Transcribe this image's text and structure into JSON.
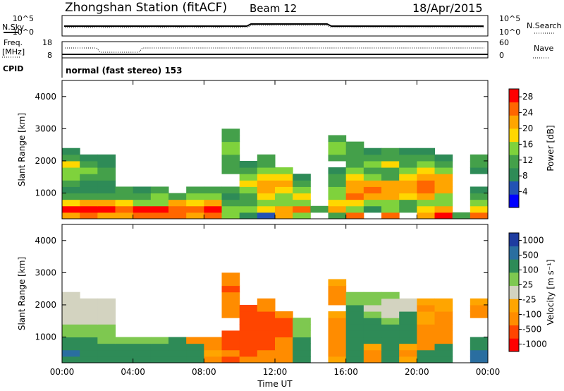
{
  "header": {
    "station": "Zhongshan Station (fitACF)",
    "beam": "Beam 12",
    "date": "18/Apr/2015"
  },
  "strips": {
    "nsky_label": "N.Sky",
    "nsearch_label": "N.Search",
    "noise_ticks": [
      "10^5",
      "10^0"
    ],
    "freq_label_1": "Freq.",
    "freq_label_2": "[MHz]",
    "freq_ticks": [
      "18",
      "8"
    ],
    "nave_label": "Nave",
    "nave_ticks": [
      "60",
      "0"
    ],
    "cpid_label": "CPID",
    "cpid_text": "normal (fast stereo) 153"
  },
  "colors": {
    "power": [
      "#0000ff",
      "#2352b4",
      "#2e8b57",
      "#44a04a",
      "#7fd23c",
      "#ffd700",
      "#ffa500",
      "#ff6600",
      "#ff0000"
    ],
    "velocity": [
      "#ff0000",
      "#ff4500",
      "#ff8c00",
      "#ffa500",
      "#d3d3c0",
      "#7ec850",
      "#2e8b57",
      "#2a6ea0",
      "#1e3ca0"
    ]
  },
  "chart_data": [
    {
      "type": "heatmap",
      "name": "power",
      "ylabel": "Slant Range [km]",
      "yticks": [
        1000,
        2000,
        3000,
        4000
      ],
      "ylim": [
        200,
        4500
      ],
      "xlim": [
        0,
        24
      ],
      "colorbar_label": "Power [dB]",
      "colorbar_ticks": [
        4,
        8,
        12,
        16,
        20,
        24,
        28
      ],
      "colorbar_range": [
        0,
        30
      ],
      "x_hours": [
        0,
        1,
        2,
        3,
        4,
        5,
        6,
        7,
        8,
        9,
        10,
        11,
        12,
        13,
        14,
        15,
        16,
        17,
        18,
        19,
        20,
        21,
        22,
        23
      ],
      "ranges_km": [
        300,
        500,
        700,
        900,
        1100,
        1300,
        1500,
        1700,
        1900,
        2100,
        2300,
        2500,
        2700,
        2900
      ],
      "values_db": [
        [
          22,
          26,
          22,
          22,
          26,
          24,
          24,
          22,
          26,
          14,
          8,
          4,
          22,
          14,
          0,
          12,
          24,
          0,
          24,
          0,
          22,
          28,
          12,
          26
        ],
        [
          28,
          28,
          28,
          24,
          28,
          28,
          26,
          26,
          28,
          16,
          16,
          18,
          22,
          26,
          12,
          20,
          16,
          8,
          14,
          10,
          18,
          22,
          0,
          18
        ],
        [
          18,
          20,
          20,
          18,
          16,
          16,
          20,
          18,
          20,
          10,
          10,
          14,
          14,
          16,
          0,
          18,
          18,
          14,
          16,
          12,
          16,
          14,
          0,
          14
        ],
        [
          12,
          10,
          10,
          10,
          10,
          14,
          10,
          14,
          14,
          8,
          12,
          18,
          16,
          18,
          0,
          16,
          24,
          20,
          22,
          18,
          20,
          16,
          0,
          12
        ],
        [
          8,
          8,
          8,
          10,
          8,
          10,
          0,
          12,
          10,
          10,
          16,
          20,
          18,
          14,
          0,
          14,
          20,
          24,
          20,
          22,
          24,
          20,
          0,
          8
        ],
        [
          10,
          8,
          8,
          0,
          0,
          0,
          0,
          0,
          0,
          0,
          18,
          22,
          20,
          10,
          0,
          12,
          22,
          22,
          20,
          22,
          24,
          22,
          0,
          0
        ],
        [
          14,
          12,
          10,
          0,
          0,
          0,
          0,
          0,
          0,
          0,
          14,
          18,
          18,
          8,
          0,
          10,
          18,
          14,
          10,
          18,
          22,
          20,
          0,
          0
        ],
        [
          16,
          14,
          12,
          0,
          0,
          0,
          0,
          0,
          0,
          12,
          10,
          16,
          14,
          0,
          0,
          8,
          14,
          12,
          12,
          14,
          18,
          16,
          0,
          8
        ],
        [
          18,
          10,
          8,
          0,
          0,
          0,
          0,
          0,
          0,
          10,
          8,
          12,
          0,
          0,
          0,
          0,
          10,
          16,
          18,
          10,
          16,
          12,
          0,
          12
        ],
        [
          10,
          8,
          8,
          0,
          0,
          0,
          0,
          0,
          0,
          12,
          0,
          10,
          0,
          0,
          0,
          12,
          10,
          10,
          12,
          10,
          12,
          8,
          0,
          10
        ],
        [
          8,
          0,
          0,
          0,
          0,
          0,
          0,
          0,
          0,
          16,
          0,
          0,
          0,
          0,
          0,
          14,
          12,
          8,
          10,
          8,
          8,
          0,
          0,
          0
        ],
        [
          0,
          0,
          0,
          0,
          0,
          0,
          0,
          0,
          0,
          14,
          0,
          0,
          0,
          0,
          0,
          14,
          10,
          0,
          0,
          0,
          0,
          0,
          0,
          0
        ],
        [
          0,
          0,
          0,
          0,
          0,
          0,
          0,
          0,
          0,
          12,
          0,
          0,
          0,
          0,
          0,
          12,
          0,
          0,
          0,
          0,
          0,
          0,
          0,
          0
        ],
        [
          0,
          0,
          0,
          0,
          0,
          0,
          0,
          0,
          0,
          10,
          0,
          0,
          0,
          0,
          0,
          0,
          0,
          0,
          0,
          0,
          0,
          0,
          0,
          0
        ]
      ]
    },
    {
      "type": "heatmap",
      "name": "velocity",
      "ylabel": "Slant Range [km]",
      "yticks": [
        1000,
        2000,
        3000,
        4000
      ],
      "ylim": [
        200,
        4500
      ],
      "xlim": [
        0,
        24
      ],
      "xticks": [
        "00:00",
        "04:00",
        "08:00",
        "12:00",
        "16:00",
        "20:00",
        "00:00"
      ],
      "xlabel": "Time UT",
      "colorbar_label": "Velocity [m s⁻¹]",
      "colorbar_ticks": [
        "1000",
        "500",
        "100",
        "25",
        "-25",
        "-100",
        "-500",
        "-1000"
      ],
      "x_hours": [
        0,
        1,
        2,
        3,
        4,
        5,
        6,
        7,
        8,
        9,
        10,
        11,
        12,
        13,
        14,
        15,
        16,
        17,
        18,
        19,
        20,
        21,
        22,
        23
      ],
      "ranges_km": [
        300,
        500,
        700,
        900,
        1100,
        1300,
        1500,
        1700,
        1900,
        2100,
        2300,
        2500,
        2700,
        2900
      ],
      "values_ms": [
        [
          300,
          200,
          200,
          100,
          100,
          100,
          200,
          300,
          -200,
          -600,
          -400,
          -300,
          -200,
          100,
          0,
          -100,
          100,
          -500,
          100,
          -100,
          200,
          200,
          0,
          600
        ],
        [
          500,
          400,
          300,
          200,
          200,
          200,
          300,
          200,
          -100,
          -500,
          -600,
          -500,
          -300,
          100,
          0,
          -200,
          100,
          -300,
          100,
          -200,
          100,
          300,
          0,
          800
        ],
        [
          400,
          300,
          200,
          100,
          100,
          100,
          100,
          100,
          -300,
          -700,
          -700,
          -600,
          -400,
          150,
          0,
          -300,
          200,
          -100,
          150,
          -100,
          -200,
          400,
          0,
          300
        ],
        [
          300,
          200,
          50,
          60,
          50,
          80,
          150,
          -200,
          -500,
          -800,
          -800,
          -700,
          -500,
          200,
          0,
          -400,
          200,
          150,
          200,
          150,
          -200,
          -300,
          0,
          200
        ],
        [
          60,
          50,
          40,
          0,
          0,
          0,
          0,
          0,
          0,
          -600,
          -700,
          -800,
          -600,
          80,
          0,
          -300,
          150,
          200,
          150,
          100,
          -300,
          -400,
          0,
          0
        ],
        [
          70,
          60,
          50,
          0,
          0,
          0,
          0,
          0,
          0,
          0,
          -900,
          -800,
          -700,
          80,
          0,
          -200,
          150,
          100,
          150,
          100,
          -200,
          -300,
          0,
          0
        ],
        [
          20,
          10,
          20,
          0,
          0,
          0,
          0,
          0,
          0,
          0,
          -800,
          -700,
          -700,
          60,
          0,
          -150,
          120,
          100,
          80,
          150,
          -100,
          -200,
          0,
          0
        ],
        [
          15,
          20,
          15,
          0,
          0,
          0,
          0,
          0,
          0,
          -300,
          -700,
          -600,
          -500,
          0,
          0,
          -100,
          100,
          60,
          20,
          100,
          -100,
          -200,
          0,
          -300
        ],
        [
          20,
          10,
          10,
          0,
          0,
          0,
          0,
          0,
          0,
          -200,
          -600,
          -500,
          0,
          0,
          0,
          0,
          100,
          20,
          10,
          20,
          -150,
          -100,
          0,
          -200
        ],
        [
          10,
          10,
          15,
          0,
          0,
          0,
          0,
          0,
          0,
          -400,
          0,
          -300,
          0,
          0,
          0,
          -200,
          80,
          30,
          10,
          20,
          -100,
          -100,
          0,
          -100
        ],
        [
          20,
          0,
          0,
          0,
          0,
          0,
          0,
          0,
          0,
          -500,
          0,
          0,
          0,
          0,
          0,
          -300,
          60,
          40,
          30,
          0,
          0,
          0,
          0,
          0
        ],
        [
          0,
          0,
          0,
          0,
          0,
          0,
          0,
          0,
          0,
          -600,
          0,
          0,
          0,
          0,
          0,
          -200,
          0,
          0,
          0,
          0,
          0,
          0,
          0,
          0
        ],
        [
          0,
          0,
          0,
          0,
          0,
          0,
          0,
          0,
          0,
          -500,
          0,
          0,
          0,
          0,
          0,
          -100,
          0,
          0,
          0,
          0,
          0,
          0,
          0,
          0
        ],
        [
          0,
          0,
          0,
          0,
          0,
          0,
          0,
          0,
          0,
          -300,
          0,
          0,
          0,
          0,
          0,
          0,
          0,
          0,
          0,
          0,
          0,
          0,
          0,
          0
        ]
      ]
    }
  ]
}
